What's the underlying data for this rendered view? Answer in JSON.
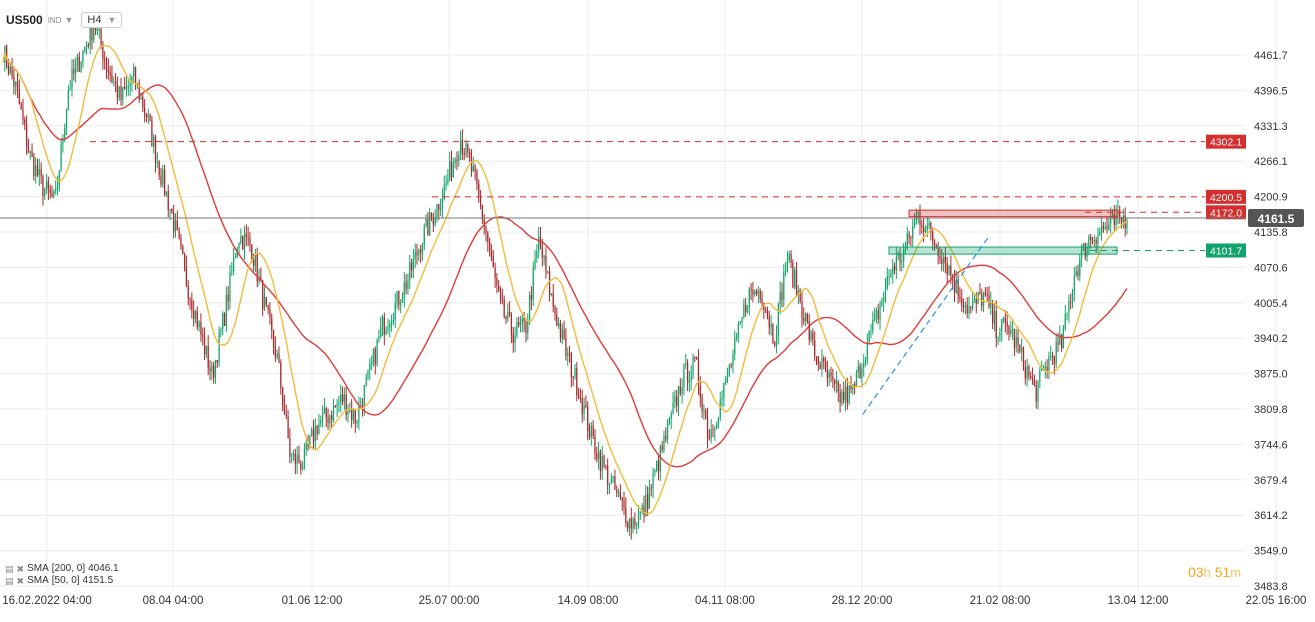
{
  "toolbar": {
    "symbol": "US500",
    "market": "IND",
    "timeframe": "H4"
  },
  "legend": [
    {
      "label": "SMA",
      "params": "[200,  0]",
      "value": "4046.1"
    },
    {
      "label": "SMA",
      "params": "[50,  0]",
      "value": "4151.5"
    }
  ],
  "timer": {
    "hours": "03",
    "h": "h",
    "minutes": "51",
    "m": "m"
  },
  "colors": {
    "up": "#14a56b",
    "down": "#a8282a",
    "sma200": "#e03a3a",
    "sma50": "#f2bb3c",
    "resistance": "#d32f2f",
    "support": "#12a36c",
    "trendline": "#2f8fe0",
    "price_line": "#777777",
    "price_label": "#555555"
  },
  "chart_data": {
    "type": "candlestick",
    "title": "",
    "ylim": [
      3483.8,
      4500
    ],
    "yticks": [
      4461.7,
      4396.5,
      4331.3,
      4266.1,
      4200.9,
      4135.8,
      4070.6,
      4005.4,
      3940.2,
      3875.0,
      3809.8,
      3744.6,
      3679.4,
      3614.2,
      3549.0,
      3483.8
    ],
    "xticks": [
      "16.02.2022  04:00",
      "08.04  04:00",
      "01.06  12:00",
      "25.07  00:00",
      "14.09  08:00",
      "04.11  08:00",
      "28.12  20:00",
      "21.02  08:00",
      "13.04  12:00",
      "22.05  16:00"
    ],
    "grid": true,
    "current_price": {
      "value": 4161.5,
      "label": "4161.5"
    },
    "levels": [
      {
        "name": "resistance-high",
        "value": 4302.1,
        "label": "4302.1",
        "kind": "resistance"
      },
      {
        "name": "resistance-mid",
        "value": 4200.5,
        "label": "4200.5",
        "kind": "resistance"
      },
      {
        "name": "resistance-low",
        "value": 4172.0,
        "label": "4172.0",
        "kind": "resistance"
      },
      {
        "name": "support",
        "value": 4101.7,
        "label": "4101.7",
        "kind": "support"
      }
    ],
    "zones": [
      {
        "name": "resistance-zone",
        "from": 4164,
        "to": 4176,
        "kind": "resistance"
      },
      {
        "name": "support-zone",
        "from": 4095,
        "to": 4108,
        "kind": "support"
      }
    ],
    "trendline": {
      "from": {
        "i": 0.765,
        "value": 3800
      },
      "to": {
        "i": 0.878,
        "value": 4130
      }
    },
    "series": [
      {
        "name": "US500",
        "kind": "close",
        "anchors": [
          4470,
          4400,
          4280,
          4220,
          4190,
          4400,
          4460,
          4520,
          4440,
          4380,
          4420,
          4350,
          4250,
          4160,
          4050,
          3960,
          3870,
          3990,
          4130,
          4110,
          4000,
          3900,
          3720,
          3710,
          3780,
          3800,
          3830,
          3790,
          3870,
          3960,
          4000,
          4050,
          4120,
          4170,
          4230,
          4310,
          4240,
          4130,
          4000,
          3950,
          3960,
          4120,
          4010,
          3920,
          3850,
          3760,
          3700,
          3650,
          3600,
          3620,
          3700,
          3780,
          3870,
          3890,
          3760,
          3830,
          3920,
          4020,
          4030,
          3940,
          4090,
          4010,
          3920,
          3870,
          3830,
          3840,
          3920,
          3990,
          4070,
          4100,
          4170,
          4130,
          4090,
          4030,
          3990,
          4020,
          3960,
          3960,
          3900,
          3840,
          3900,
          3930,
          4060,
          4120,
          4140,
          4150,
          4165
        ]
      },
      {
        "name": "SMA [200,  0]",
        "kind": "sma",
        "period": 200
      },
      {
        "name": "SMA [50,  0]",
        "kind": "sma",
        "period": 50
      }
    ]
  }
}
